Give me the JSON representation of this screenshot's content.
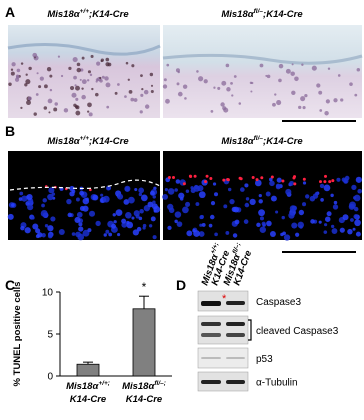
{
  "panelA": {
    "label": "A",
    "left": {
      "gene": "Mis18α",
      "allele": "+/+",
      "rest": ";K14-Cre"
    },
    "right": {
      "gene": "Mis18α",
      "allele": "fl/–",
      "rest": ";K14-Cre"
    }
  },
  "panelB": {
    "label": "B",
    "left": {
      "gene": "Mis18α",
      "allele": "+/+",
      "rest": ";K14-Cre"
    },
    "right": {
      "gene": "Mis18α",
      "allele": "fl/–",
      "rest": ";K14-Cre"
    }
  },
  "chart_data": {
    "type": "bar",
    "panel_label": "C",
    "ylabel": "% TUNEL positive cells",
    "categories": [
      {
        "gene": "Mis18α",
        "allele": "+/+;",
        "line2": "K14-Cre"
      },
      {
        "gene": "Mis18α",
        "allele": "fl/–;",
        "line2": "K14-Cre"
      }
    ],
    "values": [
      1.4,
      8.0
    ],
    "errors": [
      0.25,
      1.5
    ],
    "color": "#808080",
    "ylim": [
      0,
      10
    ],
    "yticks": [
      0,
      5,
      10
    ],
    "annotation": "*"
  },
  "panelD": {
    "label": "D",
    "lanes": [
      {
        "gene": "Mis18α",
        "allele": "+/+;",
        "line2": "K14-Cre"
      },
      {
        "gene": "Mis18α",
        "allele": "fl/–;",
        "line2": "K14-Cre"
      }
    ],
    "blots": [
      "Caspase3",
      "cleaved Caspase3",
      "p53",
      "α-Tubulin"
    ],
    "marker": "*"
  }
}
